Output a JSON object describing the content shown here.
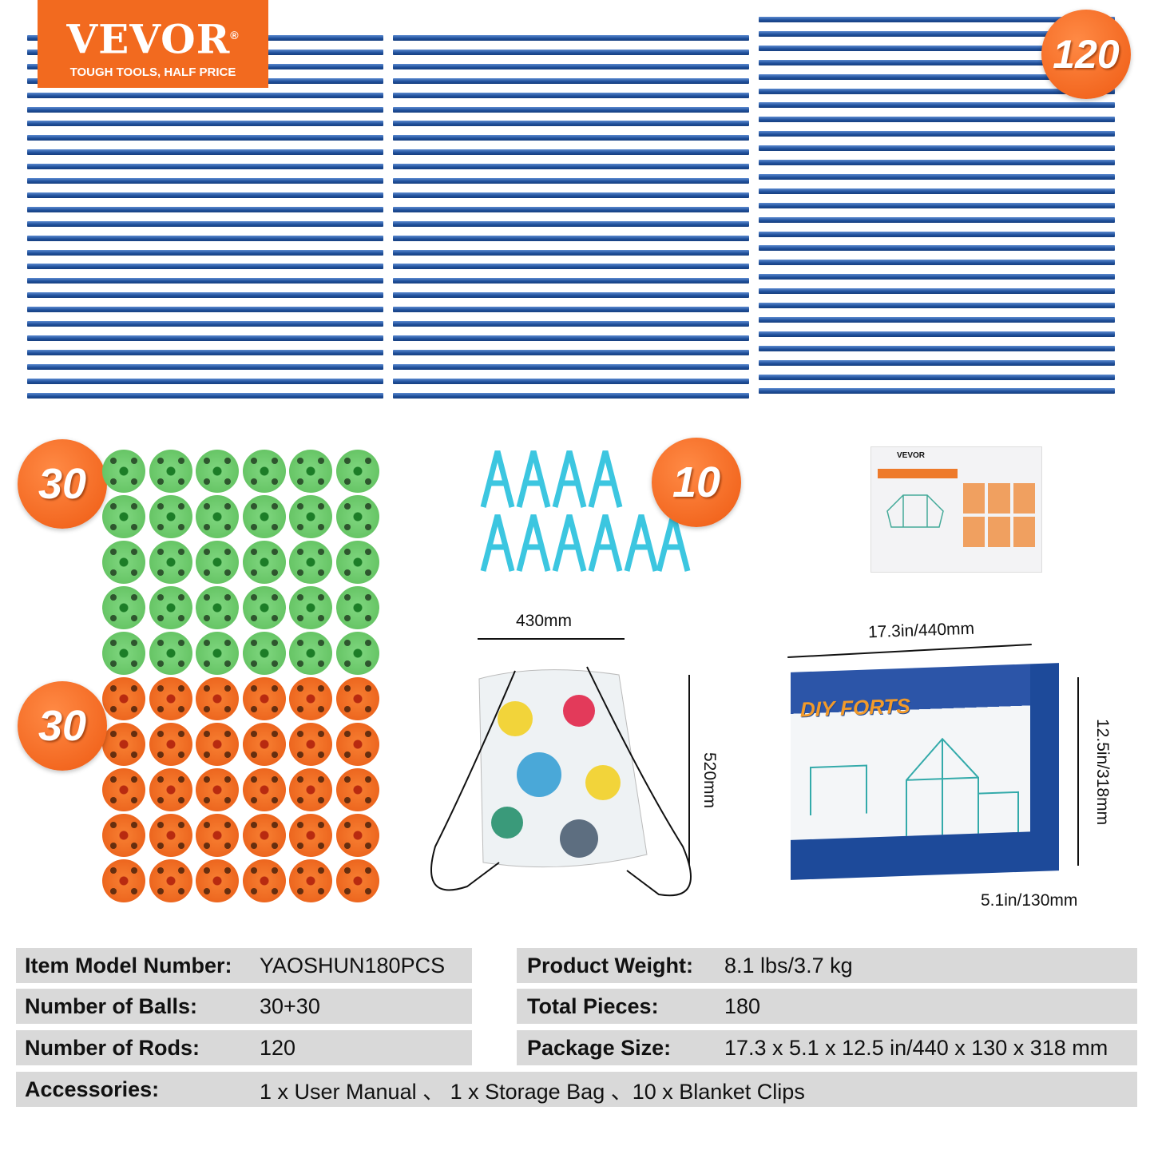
{
  "logo": {
    "brand": "VEVOR",
    "registered": "®",
    "tagline": "TOUGH TOOLS, HALF PRICE"
  },
  "colors": {
    "accent": "#f26a1f",
    "rod": "#1f4f9a",
    "green_ball": "#5cbd5a",
    "orange_ball": "#e85b16",
    "clip": "#3cc6e0",
    "table_bg": "#d9d9d9"
  },
  "badges": {
    "rods": "120",
    "green_balls": "30",
    "orange_balls": "30",
    "clips": "10"
  },
  "dimensions": {
    "bag_width": "430mm",
    "bag_height": "520mm",
    "box_length": "17.3in/440mm",
    "box_height": "12.5in/318mm",
    "box_depth": "5.1in/130mm"
  },
  "box": {
    "brand": "DIY FORTS"
  },
  "manual": {
    "brand": "VEVOR"
  },
  "specs": {
    "model": {
      "label": "Item Model Number:",
      "value": "YAOSHUN180PCS"
    },
    "balls": {
      "label": "Number of Balls:",
      "value": "30+30"
    },
    "rods": {
      "label": "Number of Rods:",
      "value": "120"
    },
    "weight": {
      "label": "Product Weight:",
      "value": "8.1 lbs/3.7 kg"
    },
    "pieces": {
      "label": "Total Pieces:",
      "value": "180"
    },
    "package": {
      "label": "Package Size:",
      "value": "17.3 x 5.1 x 12.5 in/440 x 130 x 318 mm"
    },
    "accessories": {
      "label": "Accessories:",
      "value": "1 x User Manual 、 1 x Storage Bag 、10 x Blanket Clips"
    }
  }
}
